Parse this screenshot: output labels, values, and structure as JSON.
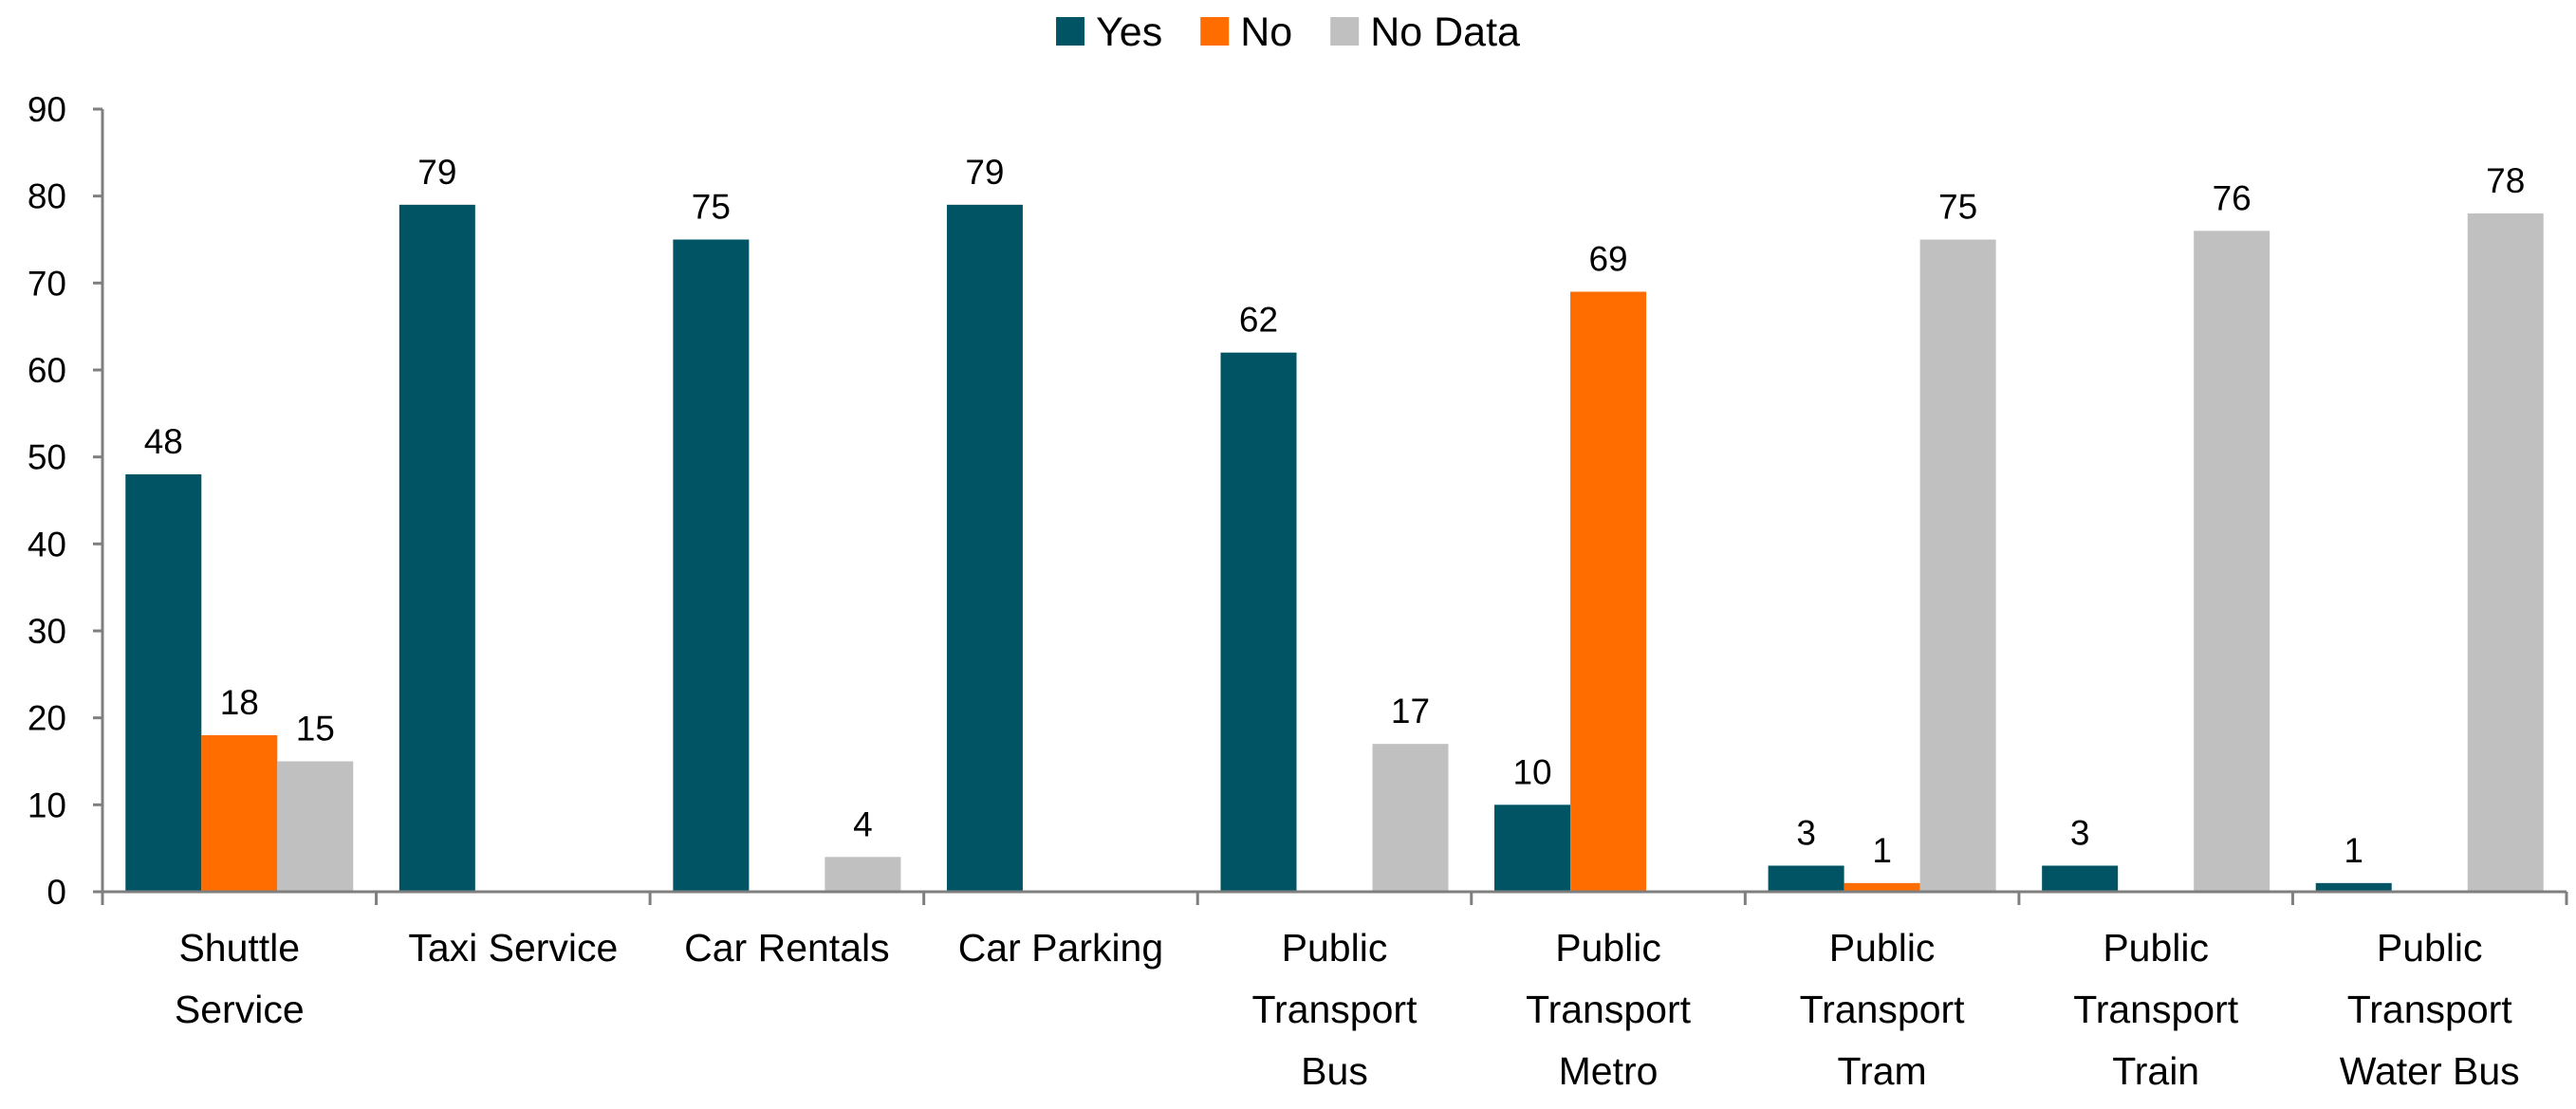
{
  "chart_data": {
    "type": "bar",
    "title": "",
    "xlabel": "",
    "ylabel": "",
    "ylim": [
      0,
      90
    ],
    "yticks": [
      "0",
      "10",
      "20",
      "30",
      "40",
      "50",
      "60",
      "70",
      "80",
      "90"
    ],
    "legend_position": "top-center",
    "categories": [
      [
        "Shuttle",
        "Service"
      ],
      [
        "Taxi Service"
      ],
      [
        "Car Rentals"
      ],
      [
        "Car Parking"
      ],
      [
        "Public",
        "Transport",
        "Bus"
      ],
      [
        "Public",
        "Transport",
        "Metro"
      ],
      [
        "Public",
        "Transport",
        "Tram"
      ],
      [
        "Public",
        "Transport",
        "Train"
      ],
      [
        "Public",
        "Transport",
        "Water Bus"
      ]
    ],
    "series": [
      {
        "name": "Yes",
        "color": "#005463",
        "values": [
          48,
          79,
          75,
          79,
          62,
          10,
          3,
          3,
          1
        ]
      },
      {
        "name": "No",
        "color": "#ff6d00",
        "values": [
          18,
          0,
          0,
          0,
          0,
          69,
          1,
          0,
          0
        ]
      },
      {
        "name": "No Data",
        "color": "#c0c0c0",
        "values": [
          15,
          0,
          4,
          0,
          17,
          0,
          75,
          76,
          78
        ]
      }
    ]
  }
}
